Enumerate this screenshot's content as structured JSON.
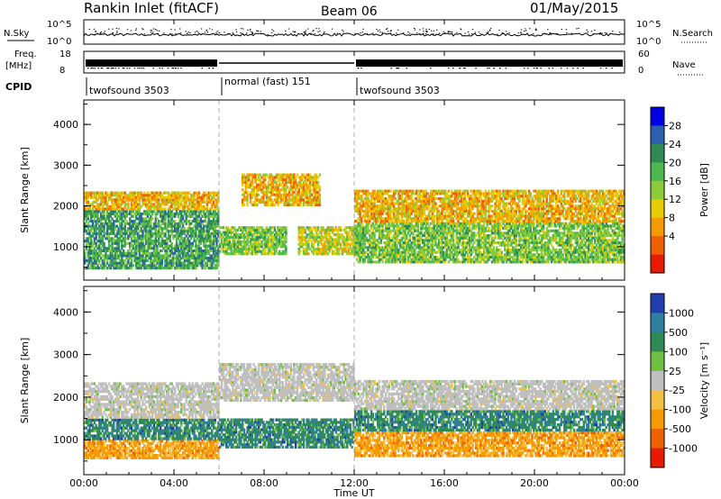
{
  "header": {
    "station": "Rankin Inlet (fitACF)",
    "beam": "Beam 06",
    "date": "01/May/2015"
  },
  "nsky_panel": {
    "left_label": "N.Sky",
    "right_label": "N.Search",
    "left_ticks": [
      "10^5",
      "10^0"
    ],
    "right_ticks": [
      "10^5",
      "10^0"
    ]
  },
  "freq_panel": {
    "left_label_1": "Freq.",
    "left_label_2": "[MHz]",
    "right_label": "Nave",
    "left_ticks": [
      "18",
      "8"
    ],
    "right_ticks": [
      "60",
      "0"
    ]
  },
  "cpid": {
    "label": "CPID",
    "segments": [
      {
        "start_hour": 0,
        "end_hour": 6,
        "name": "twofsound 3503"
      },
      {
        "start_hour": 6,
        "end_hour": 12,
        "name": "normal (fast) 151"
      },
      {
        "start_hour": 12,
        "end_hour": 24,
        "name": "twofsound 3503"
      }
    ]
  },
  "chart_data": [
    {
      "type": "heatmap",
      "title": "",
      "xlabel": "Time UT",
      "ylabel": "Slant Range [km]",
      "xlim": [
        0,
        24
      ],
      "ylim": [
        180,
        4600
      ],
      "x_ticks": [
        "00:00",
        "04:00",
        "08:00",
        "12:00",
        "16:00",
        "20:00",
        "00:00"
      ],
      "y_ticks": [
        1000,
        2000,
        3000,
        4000
      ],
      "colorbar": {
        "label": "Power [dB]",
        "ticks": [
          4,
          8,
          12,
          16,
          20,
          24,
          28
        ],
        "colors": [
          "#0000e6",
          "#2c5fb0",
          "#2f8a55",
          "#4db84d",
          "#8ccc3a",
          "#e8cc00",
          "#f59a00",
          "#f06000",
          "#e81a00"
        ]
      },
      "bands": [
        {
          "t0": 0.0,
          "t1": 6.0,
          "r0": 450,
          "r1": 1900,
          "value": 24
        },
        {
          "t0": 0.0,
          "t1": 6.0,
          "r0": 1900,
          "r1": 2350,
          "value": 12
        },
        {
          "t0": 6.0,
          "t1": 9.0,
          "r0": 800,
          "r1": 1500,
          "value": 20
        },
        {
          "t0": 7.0,
          "t1": 10.5,
          "r0": 2000,
          "r1": 2800,
          "value": 12
        },
        {
          "t0": 9.5,
          "t1": 12.5,
          "r0": 800,
          "r1": 1500,
          "value": 16
        },
        {
          "t0": 12.0,
          "t1": 24.0,
          "r0": 600,
          "r1": 1600,
          "value": 20
        },
        {
          "t0": 12.0,
          "t1": 24.0,
          "r0": 1600,
          "r1": 2400,
          "value": 12
        }
      ]
    },
    {
      "type": "heatmap",
      "title": "",
      "xlabel": "Time UT",
      "ylabel": "Slant Range [km]",
      "xlim": [
        0,
        24
      ],
      "ylim": [
        180,
        4600
      ],
      "x_ticks": [
        "00:00",
        "04:00",
        "08:00",
        "12:00",
        "16:00",
        "20:00",
        "00:00"
      ],
      "y_ticks": [
        1000,
        2000,
        3000,
        4000
      ],
      "colorbar": {
        "label": "Velocity [m s⁻¹]",
        "ticks": [
          "1000",
          "500",
          "100",
          "25",
          "-25",
          "-100",
          "-500",
          "-1000"
        ],
        "colors": [
          "#1f3fb0",
          "#2f7fa0",
          "#2f8a55",
          "#6fc040",
          "#bfbfbf",
          "#f5c040",
          "#f59a00",
          "#f06000",
          "#e81a00"
        ]
      },
      "bands": [
        {
          "t0": 0.0,
          "t1": 6.0,
          "r0": 550,
          "r1": 1000,
          "value": -100
        },
        {
          "t0": 0.0,
          "t1": 6.0,
          "r0": 1000,
          "r1": 1500,
          "value": 100
        },
        {
          "t0": 0.0,
          "t1": 6.0,
          "r0": 1500,
          "r1": 2350,
          "value": 0
        },
        {
          "t0": 6.0,
          "t1": 12.0,
          "r0": 800,
          "r1": 1500,
          "value": 100
        },
        {
          "t0": 6.0,
          "t1": 12.0,
          "r0": 1900,
          "r1": 2800,
          "value": 0
        },
        {
          "t0": 12.0,
          "t1": 24.0,
          "r0": 600,
          "r1": 1200,
          "value": -100
        },
        {
          "t0": 12.0,
          "t1": 24.0,
          "r0": 1200,
          "r1": 1700,
          "value": 100
        },
        {
          "t0": 12.0,
          "t1": 24.0,
          "r0": 1700,
          "r1": 2400,
          "value": 0
        }
      ]
    }
  ]
}
